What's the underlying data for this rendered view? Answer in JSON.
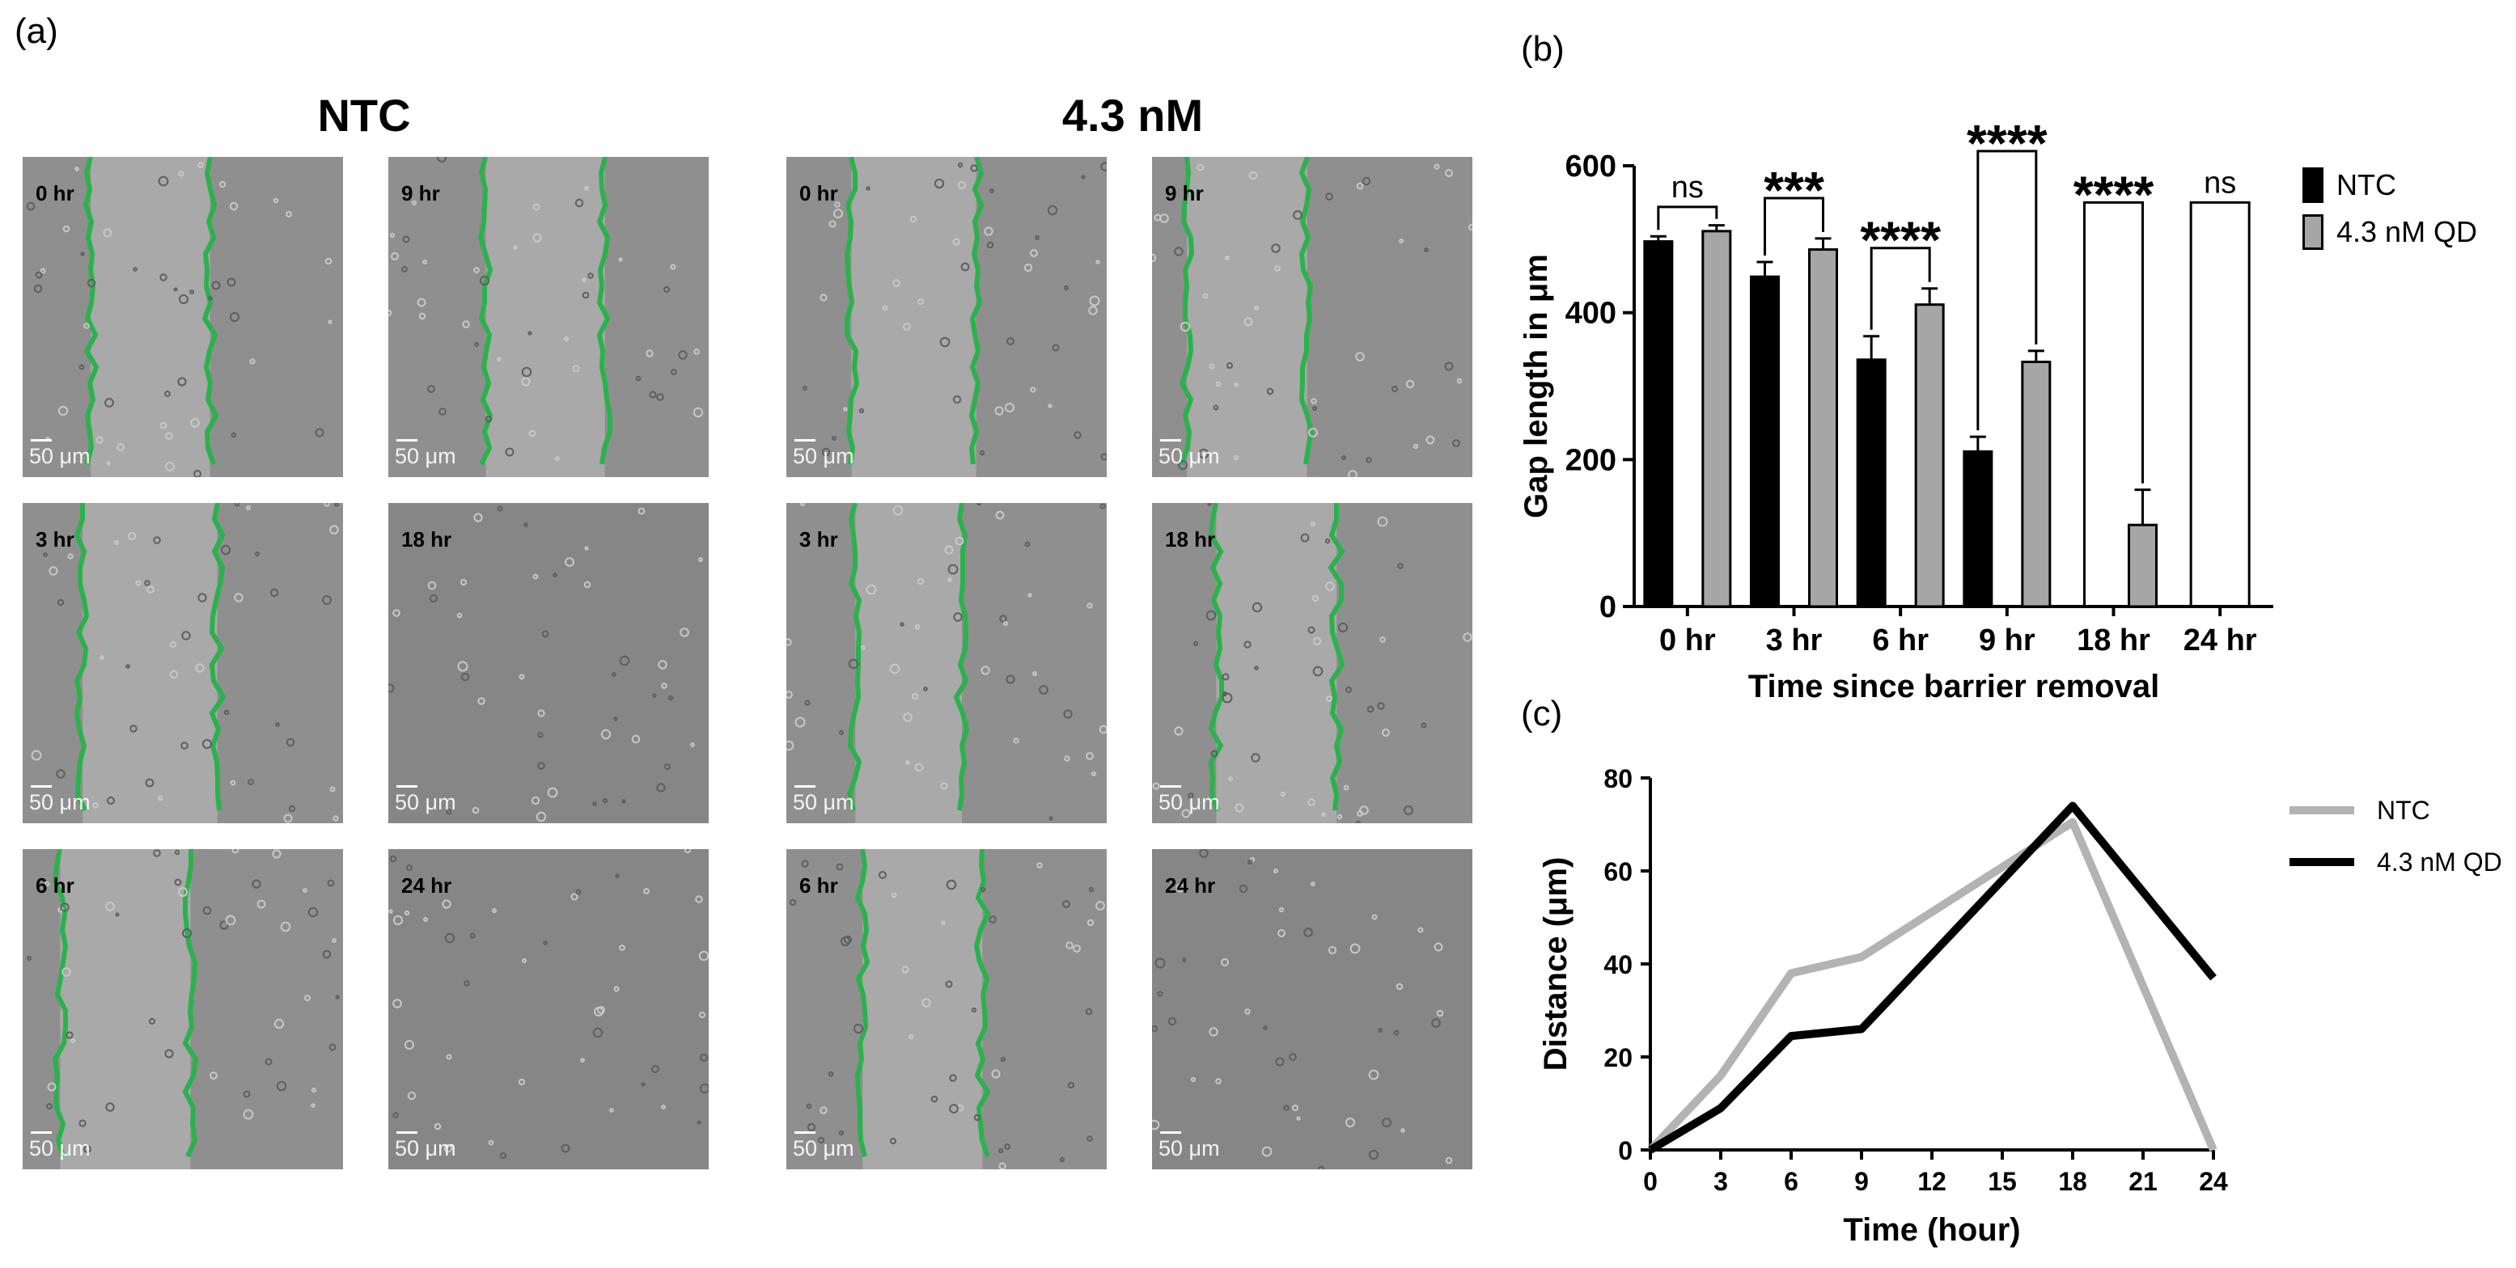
{
  "panel_a": {
    "label": "(a)",
    "groups": [
      {
        "title": "NTC",
        "images": [
          {
            "time": "0 hr",
            "scale": "50 μm",
            "closed": false
          },
          {
            "time": "9 hr",
            "scale": "50 μm",
            "closed": false
          },
          {
            "time": "3 hr",
            "scale": "50 μm",
            "closed": false
          },
          {
            "time": "18 hr",
            "scale": "50 μm",
            "closed": true
          },
          {
            "time": "6 hr",
            "scale": "50 μm",
            "closed": false
          },
          {
            "time": "24 hr",
            "scale": "50 μm",
            "closed": true
          }
        ]
      },
      {
        "title": "4.3 nM",
        "images": [
          {
            "time": "0 hr",
            "scale": "50 μm",
            "closed": false
          },
          {
            "time": "9 hr",
            "scale": "50 μm",
            "closed": false
          },
          {
            "time": "3 hr",
            "scale": "50 μm",
            "closed": false
          },
          {
            "time": "18 hr",
            "scale": "50 μm",
            "closed": false
          },
          {
            "time": "6 hr",
            "scale": "50 μm",
            "closed": false
          },
          {
            "time": "24 hr",
            "scale": "50 μm",
            "closed": true
          }
        ]
      }
    ]
  },
  "panel_b": {
    "label": "(b)"
  },
  "panel_c": {
    "label": "(c)"
  },
  "colors": {
    "edge_green": "#2bb24c",
    "ntc_bar": "#000000",
    "qd_bar": "#a6a6a6",
    "ntc_line": "#b3b3b3",
    "qd_line": "#000000"
  },
  "chart_data": [
    {
      "type": "bar",
      "categories": [
        "0 hr",
        "3 hr",
        "6 hr",
        "9 hr",
        "18 hr",
        "24 hr"
      ],
      "series": [
        {
          "name": "NTC",
          "values": [
            497,
            449,
            336,
            211,
            0,
            0
          ],
          "errors": [
            7,
            20,
            32,
            20,
            0,
            0
          ]
        },
        {
          "name": "4.3 nM QD",
          "values": [
            511,
            486,
            411,
            333,
            111,
            0
          ],
          "errors": [
            8,
            15,
            22,
            15,
            48,
            0
          ]
        }
      ],
      "significance": [
        "ns",
        "***",
        "****",
        "****",
        "****",
        "ns"
      ],
      "xlabel": "Time since barrier removal",
      "ylabel": "Gap length in μm",
      "ylim": [
        0,
        600
      ],
      "yticks": [
        0,
        200,
        400,
        600
      ],
      "legend": "right"
    },
    {
      "type": "line",
      "x": [
        0,
        3,
        6,
        9,
        12,
        15,
        18,
        21,
        24
      ],
      "series": [
        {
          "name": "NTC",
          "points": [
            [
              0,
              0
            ],
            [
              3,
              16
            ],
            [
              6,
              38
            ],
            [
              9,
              41.5
            ],
            [
              18,
              70.5
            ],
            [
              24,
              0
            ]
          ]
        },
        {
          "name": "4.3 nM QD",
          "points": [
            [
              0,
              0
            ],
            [
              3,
              9
            ],
            [
              6,
              24.5
            ],
            [
              9,
              26
            ],
            [
              18,
              74
            ],
            [
              24,
              37
            ]
          ]
        }
      ],
      "xlabel": "Time (hour)",
      "ylabel": "Distance (μm)",
      "xlim": [
        0,
        24
      ],
      "ylim": [
        0,
        80
      ],
      "yticks": [
        0,
        20,
        40,
        60,
        80
      ],
      "legend": "right"
    }
  ]
}
